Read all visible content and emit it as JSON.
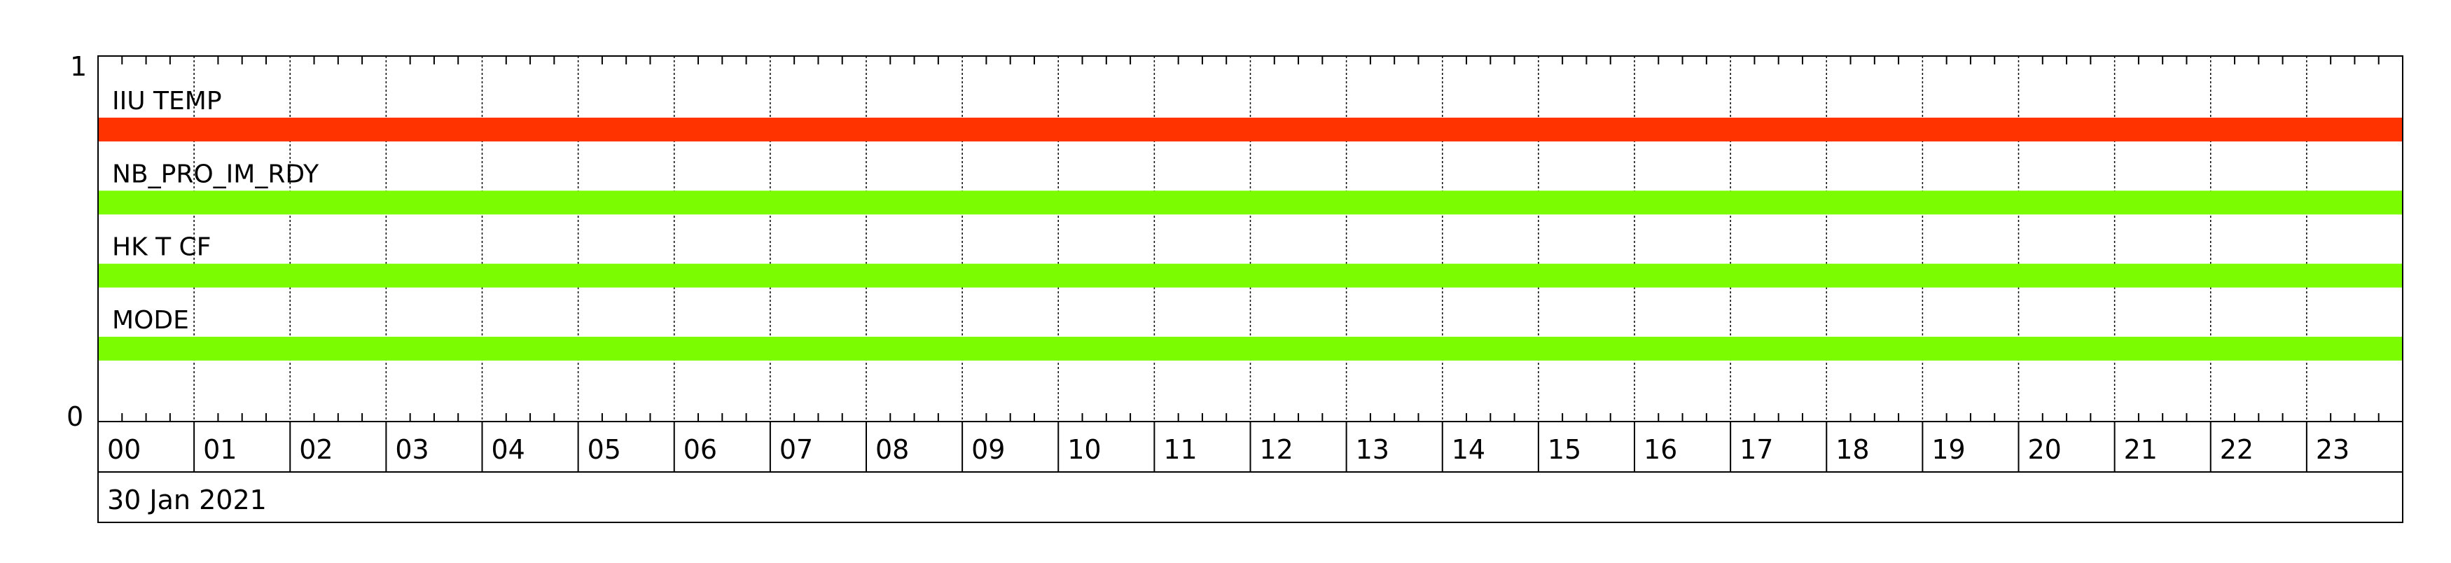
{
  "chart_data": {
    "type": "timeline",
    "ylim": [
      0,
      1
    ],
    "y_tick_labels": [
      "1",
      "0"
    ],
    "x_tick_labels": [
      "00",
      "01",
      "02",
      "03",
      "04",
      "05",
      "06",
      "07",
      "08",
      "09",
      "10",
      "11",
      "12",
      "13",
      "14",
      "15",
      "16",
      "17",
      "18",
      "19",
      "20",
      "21",
      "22",
      "23"
    ],
    "x_unit": "hour",
    "x_range_hours": [
      0,
      24
    ],
    "minor_ticks_per_hour": 4,
    "grid": "vertical dotted at each hour",
    "date_label": "30 Jan 2021",
    "series": [
      {
        "name": "IIU TEMP",
        "start_hour": 0,
        "end_hour": 24,
        "color": "#ff3300"
      },
      {
        "name": "NB_PRO_IM_RDY",
        "start_hour": 0,
        "end_hour": 24,
        "color": "#7cfc00"
      },
      {
        "name": "HK T CF",
        "start_hour": 0,
        "end_hour": 24,
        "color": "#7cfc00"
      },
      {
        "name": "MODE",
        "start_hour": 0,
        "end_hour": 24,
        "color": "#7cfc00"
      }
    ]
  }
}
